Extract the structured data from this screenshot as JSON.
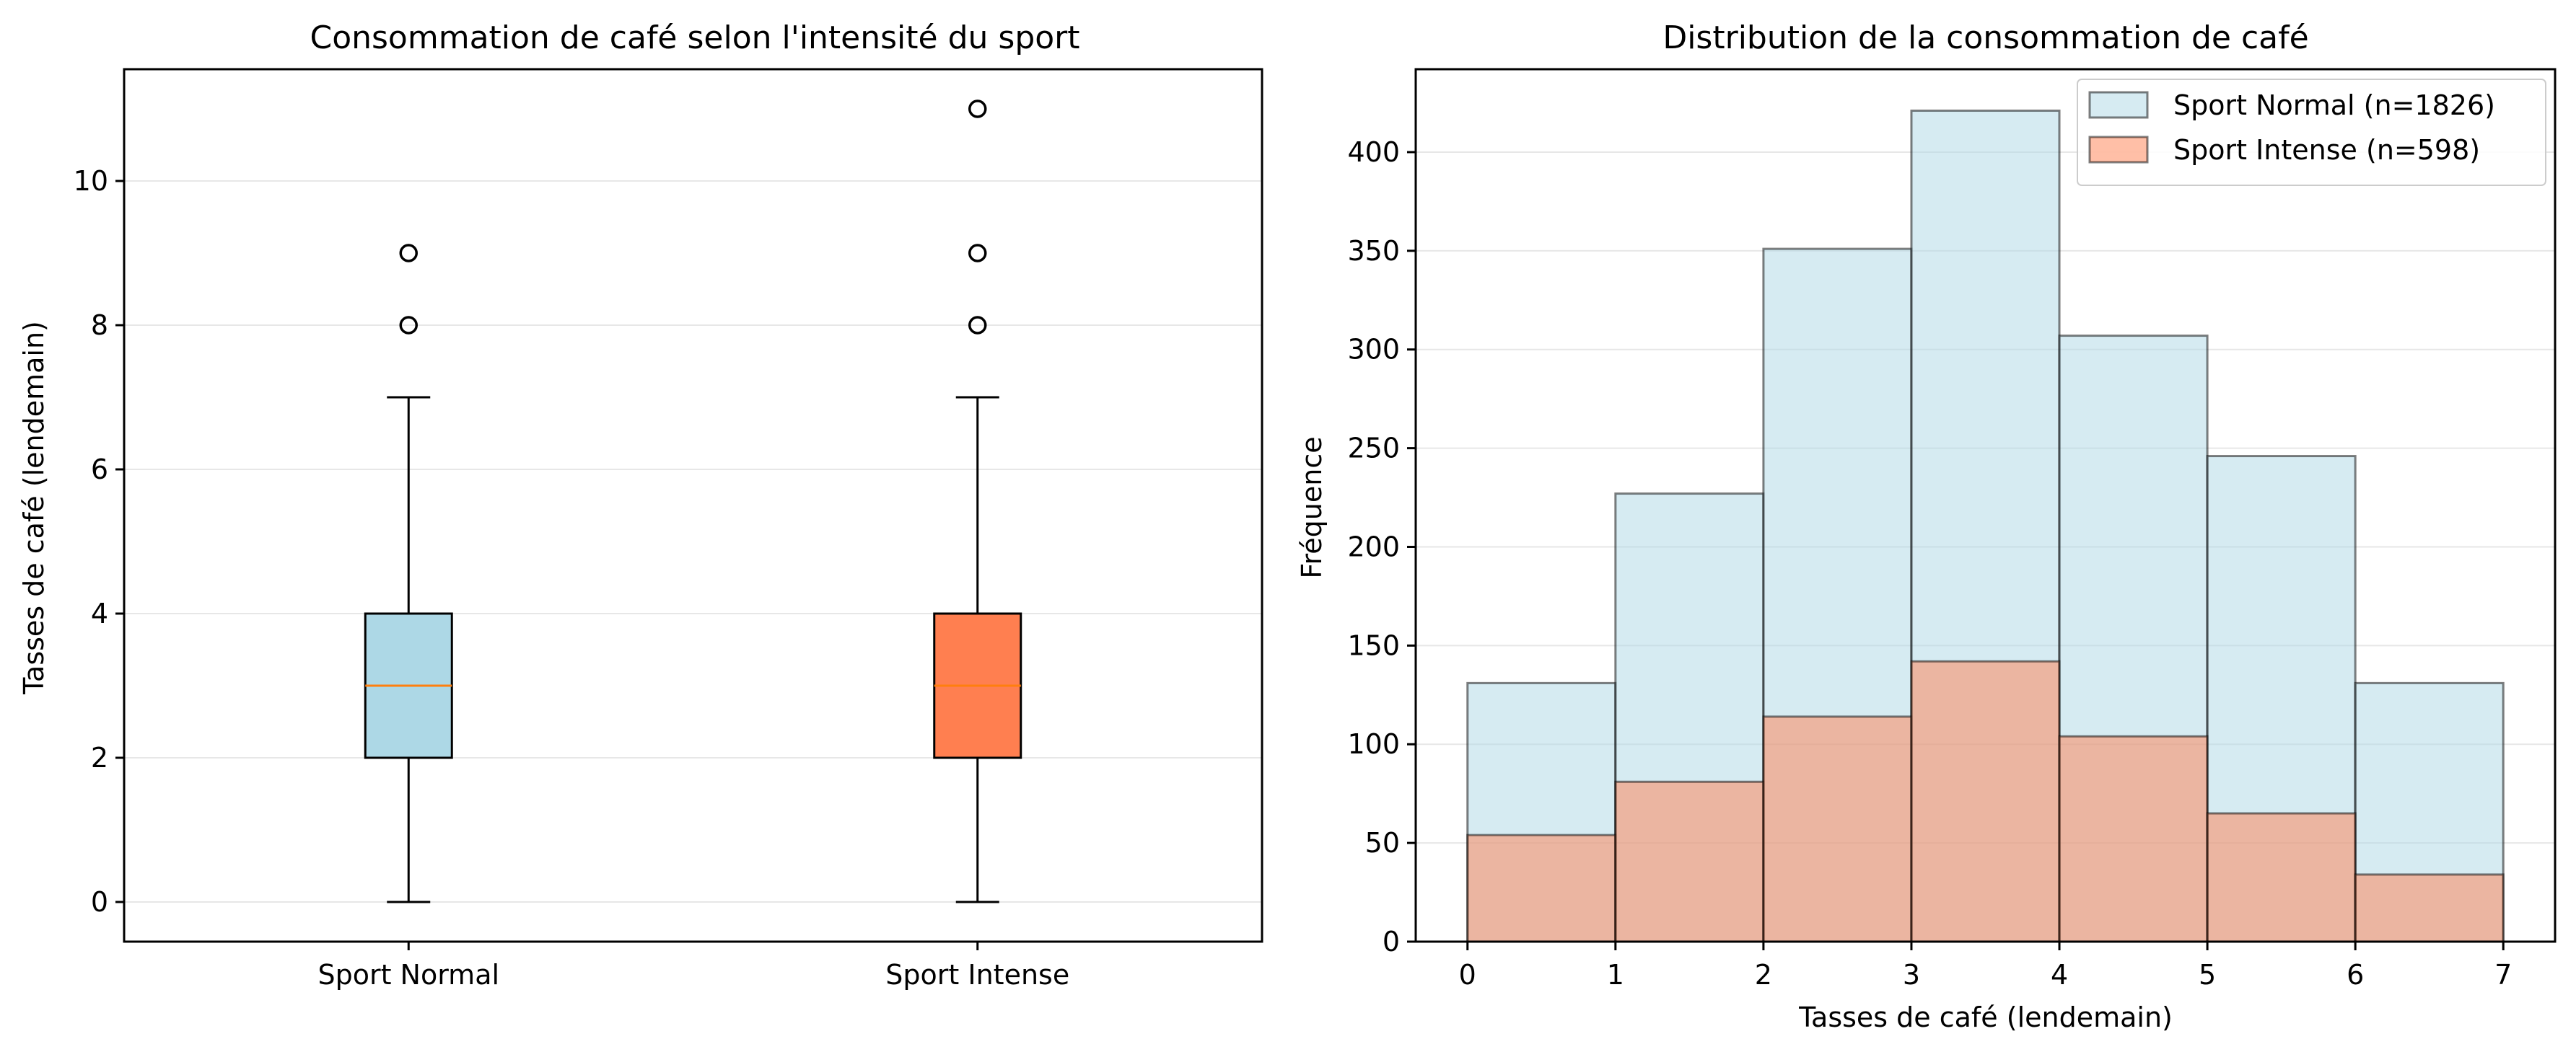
{
  "chart_data": [
    {
      "type": "box",
      "title": "Consommation de café selon l'intensité du sport",
      "xlabel": "",
      "ylabel": "Tasses de café (lendemain)",
      "ylim": [
        -0.55,
        11.55
      ],
      "yticks": [
        0,
        2,
        4,
        6,
        8,
        10
      ],
      "grid": "y",
      "categories": [
        "Sport Normal",
        "Sport Intense"
      ],
      "series": [
        {
          "category": "Sport Normal",
          "color": "#add8e6",
          "median_color": "#ff7f0e",
          "whisker_low": 0,
          "q1": 2,
          "median": 3,
          "q3": 4,
          "whisker_high": 7,
          "outliers": [
            8,
            9
          ]
        },
        {
          "category": "Sport Intense",
          "color": "#ff7f50",
          "median_color": "#ff7f0e",
          "whisker_low": 0,
          "q1": 2,
          "median": 3,
          "q3": 4,
          "whisker_high": 7,
          "outliers": [
            8,
            9,
            11
          ]
        }
      ]
    },
    {
      "type": "histogram",
      "title": "Distribution de la consommation de café",
      "xlabel": "Tasses de café (lendemain)",
      "ylabel": "Fréquence",
      "xlim": [
        -0.35,
        7.35
      ],
      "ylim": [
        0,
        442
      ],
      "xticks": [
        0,
        1,
        2,
        3,
        4,
        5,
        6,
        7
      ],
      "yticks": [
        0,
        50,
        100,
        150,
        200,
        250,
        300,
        350,
        400
      ],
      "grid": "y",
      "legend_position": "top-right",
      "bin_edges": [
        0,
        1,
        2,
        3,
        4,
        5,
        6,
        7
      ],
      "series": [
        {
          "name": "Sport Normal (n=1826)",
          "color": "#add8e6",
          "values": [
            131,
            227,
            351,
            421,
            307,
            246,
            131
          ]
        },
        {
          "name": "Sport Intense (n=598)",
          "color": "#ff7f50",
          "values": [
            54,
            81,
            114,
            142,
            104,
            65,
            34
          ]
        }
      ]
    }
  ]
}
